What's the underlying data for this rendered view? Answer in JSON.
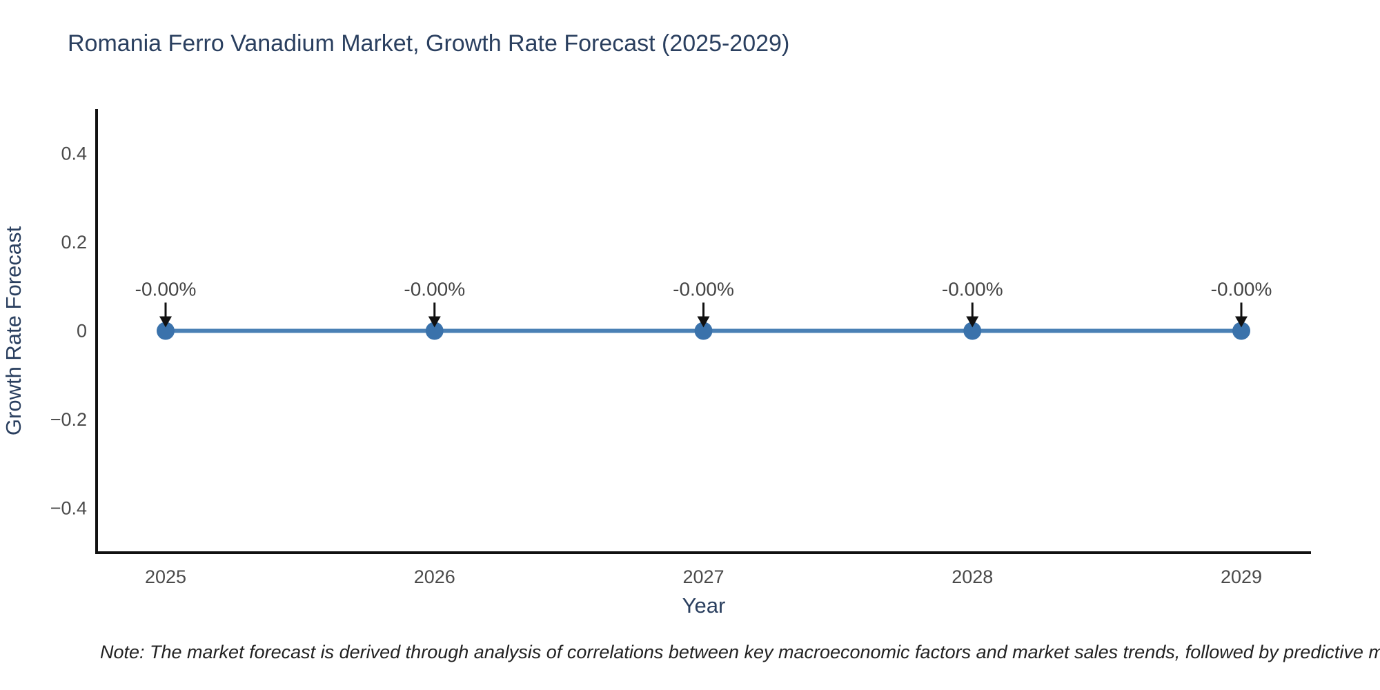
{
  "title": "Romania Ferro Vanadium Market, Growth Rate Forecast (2025-2029)",
  "note": "Note: The market forecast is derived through analysis of correlations between key macroeconomic factors and market sales trends, followed by predictive modeling to project future sales.",
  "chart_data": {
    "type": "line",
    "title": "Romania Ferro Vanadium Market, Growth Rate Forecast (2025-2029)",
    "xlabel": "Year",
    "ylabel": "Growth Rate Forecast",
    "x": [
      "2025",
      "2026",
      "2027",
      "2028",
      "2029"
    ],
    "series": [
      {
        "name": "Growth Rate Forecast",
        "values": [
          0,
          0,
          0,
          0,
          0
        ]
      }
    ],
    "point_labels": [
      "-0.00%",
      "-0.00%",
      "-0.00%",
      "-0.00%",
      "-0.00%"
    ],
    "ylim": [
      -0.5,
      0.5
    ],
    "ytick_values": [
      0.4,
      0.2,
      0,
      -0.2,
      -0.4
    ],
    "ytick_labels": [
      "0.4",
      "0.2",
      "0",
      "−0.2",
      "−0.4"
    ],
    "grid": false,
    "legend": "none",
    "colors": {
      "line": "#4a80b5",
      "marker": "#3a72ab",
      "axis_line": "#111111",
      "tick_label": "#4a4a4a",
      "axis_title": "#2a3f5f",
      "annotation_text": "#444444",
      "annotation_arrow": "#111111"
    }
  }
}
